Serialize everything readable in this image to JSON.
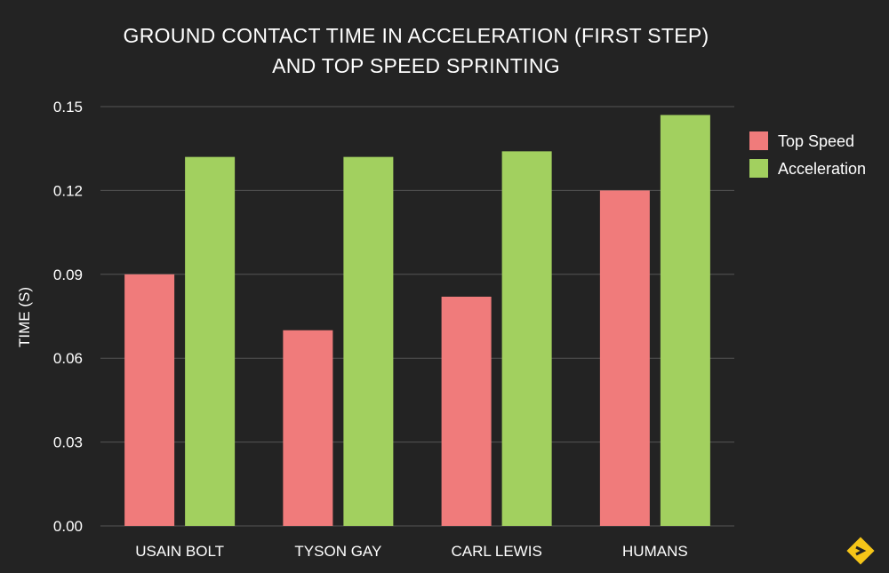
{
  "chart_data": {
    "type": "bar",
    "title": "GROUND CONTACT TIME IN ACCELERATION (FIRST STEP)",
    "subtitle": "AND TOP SPEED SPRINTING",
    "ylabel": "TIME (S)",
    "xlabel": "",
    "categories": [
      "USAIN BOLT",
      "TYSON GAY",
      "CARL LEWIS",
      "HUMANS"
    ],
    "series": [
      {
        "name": "Top Speed",
        "color": "#F07B7B",
        "values": [
          0.09,
          0.07,
          0.082,
          0.12
        ]
      },
      {
        "name": "Acceleration",
        "color": "#A2D05F",
        "values": [
          0.132,
          0.132,
          0.134,
          0.147
        ]
      }
    ],
    "ylim": [
      0,
      0.15
    ],
    "yticks": [
      "0.00",
      "0.03",
      "0.06",
      "0.09",
      "0.12",
      "0.15"
    ],
    "grid": true,
    "legend_position": "right"
  },
  "logo": {
    "name": "diamond-logo-icon",
    "color": "#F5C518"
  }
}
